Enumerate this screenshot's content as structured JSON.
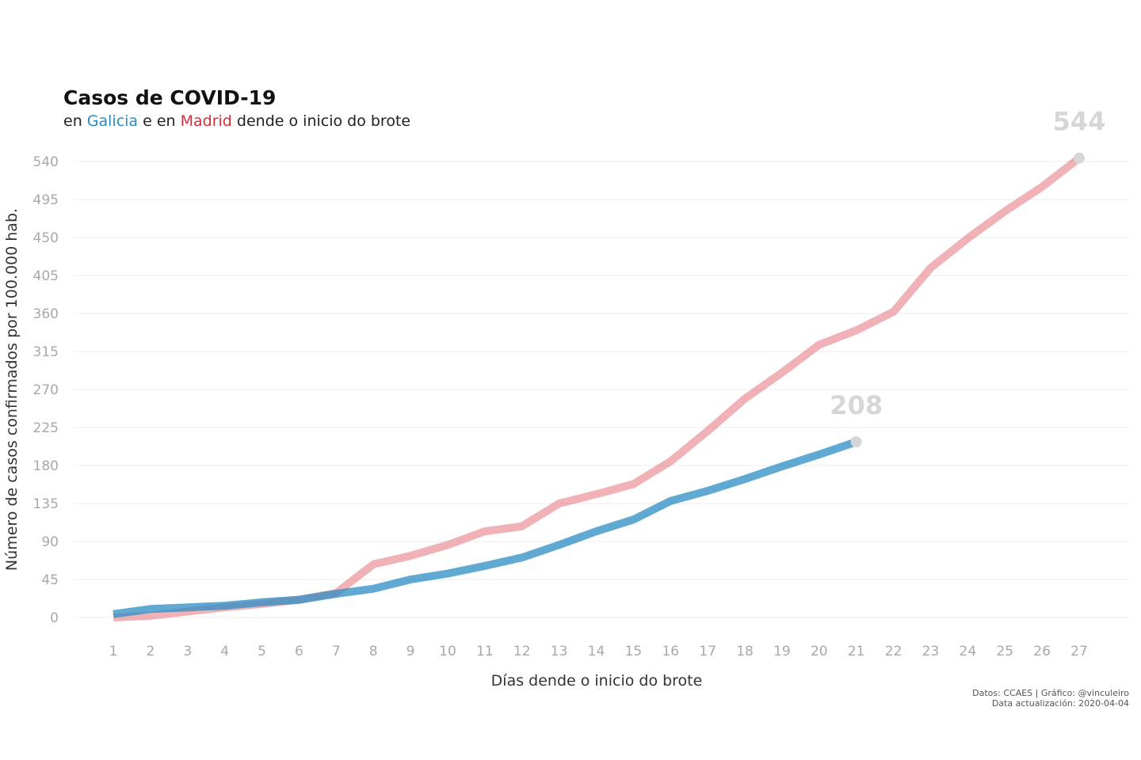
{
  "title": "Casos de COVID-19",
  "subtitle": {
    "prefix": "en ",
    "series_a": "Galicia",
    "middle": " e en ",
    "series_b": "Madrid",
    "suffix": " dende o inicio do brote"
  },
  "caption": {
    "line1": "Datos: CCAES | Gráfico: @vinculeiro",
    "line2": "Data actualización: 2020-04-04"
  },
  "colors": {
    "galicia": "#2b8cc4",
    "madrid": "#e8898f",
    "end_marker": "#d6d6d6"
  },
  "chart_data": {
    "type": "line",
    "xlabel": "Días dende o inicio do brote",
    "ylabel": "Número de casos confirmados por 100.000 hab.",
    "xlim": [
      1,
      27
    ],
    "ylim": [
      0,
      540
    ],
    "x_ticks": [
      1,
      2,
      3,
      4,
      5,
      6,
      7,
      8,
      9,
      10,
      11,
      12,
      13,
      14,
      15,
      16,
      17,
      18,
      19,
      20,
      21,
      22,
      23,
      24,
      25,
      26,
      27
    ],
    "y_ticks": [
      0,
      45,
      90,
      135,
      180,
      225,
      270,
      315,
      360,
      405,
      450,
      495,
      540
    ],
    "grid": "horizontal",
    "series": [
      {
        "name": "Madrid",
        "x": [
          1,
          2,
          3,
          4,
          5,
          6,
          7,
          8,
          9,
          10,
          11,
          12,
          13,
          14,
          15,
          16,
          17,
          18,
          19,
          20,
          21,
          22,
          23,
          24,
          25,
          26,
          27
        ],
        "values": [
          0,
          2,
          7,
          12,
          16,
          21,
          29,
          63,
          73,
          86,
          102,
          108,
          135,
          146,
          158,
          185,
          221,
          259,
          290,
          323,
          340,
          362,
          414,
          449,
          481,
          510,
          544
        ],
        "end_label": "544"
      },
      {
        "name": "Galicia",
        "x": [
          1,
          2,
          3,
          4,
          5,
          6,
          7,
          8,
          9,
          10,
          11,
          12,
          13,
          14,
          15,
          16,
          17,
          18,
          19,
          20,
          21
        ],
        "values": [
          4,
          10,
          12,
          14,
          18,
          21,
          28,
          34,
          45,
          52,
          61,
          71,
          86,
          102,
          116,
          138,
          150,
          164,
          179,
          193,
          208
        ],
        "end_label": "208"
      }
    ]
  }
}
